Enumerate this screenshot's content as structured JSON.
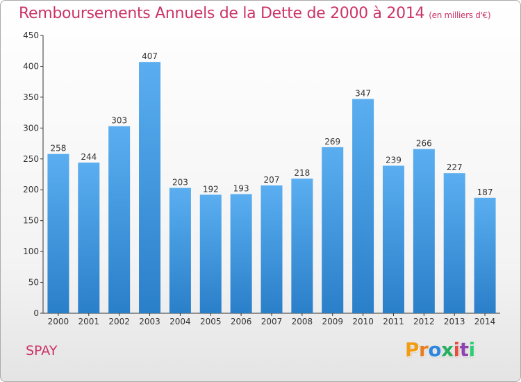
{
  "header": {
    "title": "Remboursements Annuels de la Dette de 2000 à 2014",
    "subtitle": "(en milliers d'€)"
  },
  "footer": {
    "town": "SPAY",
    "logo_text": "Proxiti"
  },
  "colors": {
    "title": "#cc3366",
    "bar_light": "#5aaef0",
    "bar_dark": "#2a7fc9",
    "axis": "#333333",
    "logo_letters": [
      "#f39c12",
      "#e67e22",
      "#2e86de",
      "#27ae60",
      "#e74c3c",
      "#8e44ad",
      "#2ecc71"
    ]
  },
  "chart_data": {
    "type": "bar",
    "categories": [
      "2000",
      "2001",
      "2002",
      "2003",
      "2004",
      "2005",
      "2006",
      "2007",
      "2008",
      "2009",
      "2010",
      "2011",
      "2012",
      "2013",
      "2014"
    ],
    "values": [
      258,
      244,
      303,
      407,
      203,
      192,
      193,
      207,
      218,
      269,
      347,
      239,
      266,
      227,
      187
    ],
    "ylim": [
      0,
      450
    ],
    "yticks": [
      0,
      50,
      100,
      150,
      200,
      250,
      300,
      350,
      400,
      450
    ],
    "grid": false,
    "data_labels": true
  }
}
